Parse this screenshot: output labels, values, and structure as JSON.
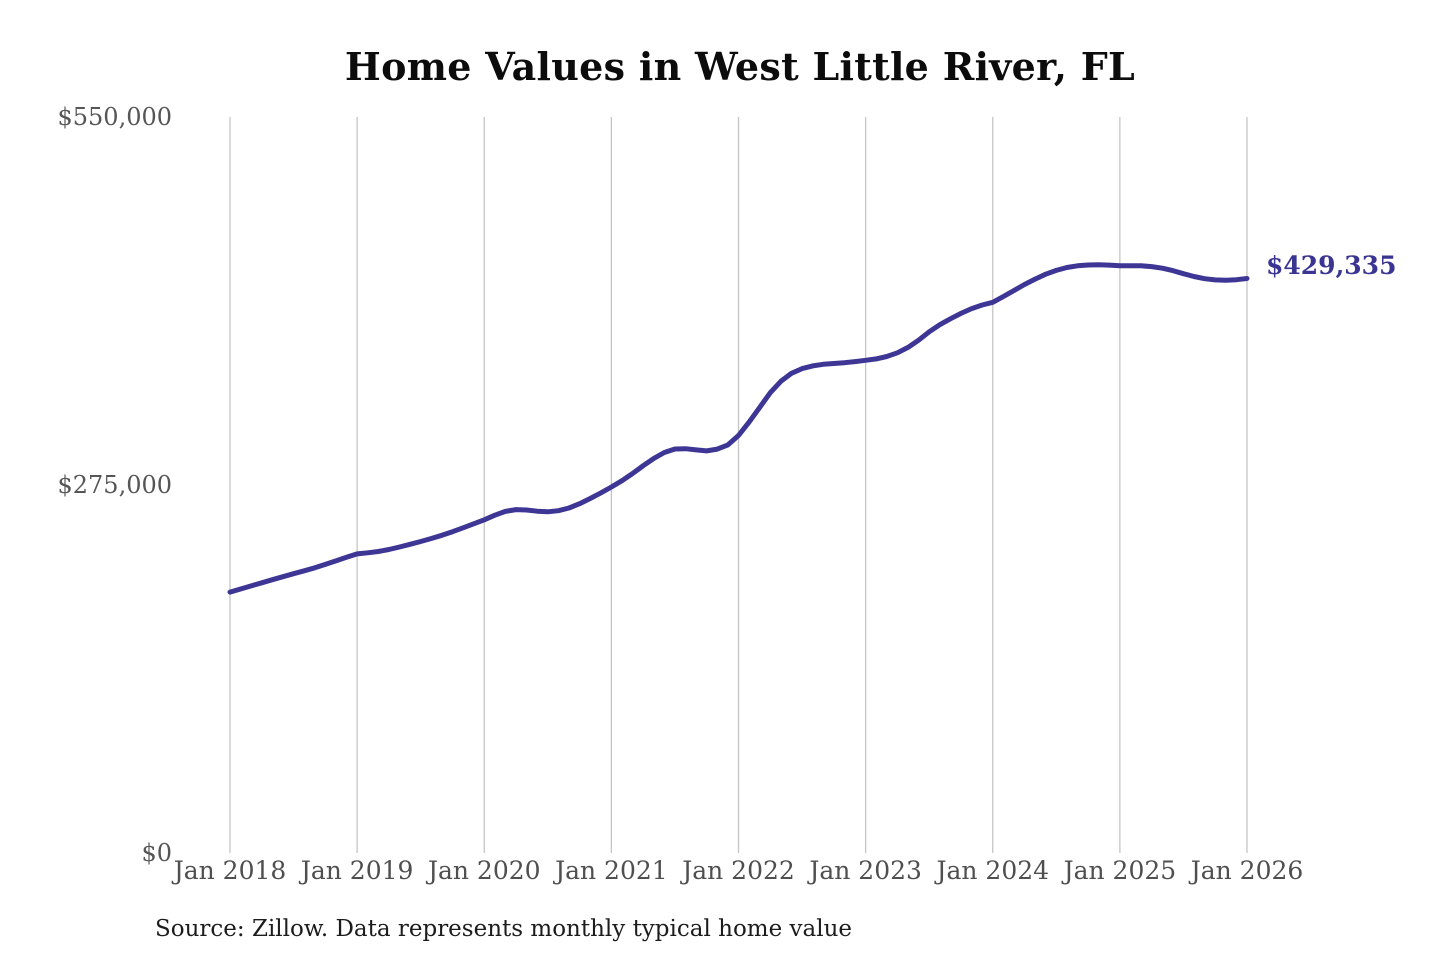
{
  "chart_data": {
    "type": "line",
    "title": "Home Values in West Little River, FL",
    "series_name": "Monthly typical home value",
    "x_start": "2018-01",
    "x_end": "2026-01",
    "x_interval": "month",
    "x_tick_labels": [
      "Jan 2018",
      "Jan 2019",
      "Jan 2020",
      "Jan 2021",
      "Jan 2022",
      "Jan 2023",
      "Jan 2024",
      "Jan 2025",
      "Jan 2026"
    ],
    "y_ticks": [
      {
        "value": 550000,
        "label": "$550,000"
      },
      {
        "value": 275000,
        "label": "$275,000"
      },
      {
        "value": 0,
        "label": "$0"
      }
    ],
    "ylim": [
      0,
      550000
    ],
    "grid": "vertical-only",
    "legend": "none",
    "line_color": "#3d3695",
    "grid_color": "#c5c5c5",
    "values": [
      195000,
      197300,
      199600,
      201900,
      204200,
      206500,
      208700,
      210900,
      213100,
      215700,
      218300,
      221000,
      223500,
      224300,
      225300,
      226800,
      228700,
      230700,
      232800,
      235000,
      237400,
      240100,
      243000,
      246000,
      249000,
      252400,
      255300,
      256600,
      256300,
      255400,
      255000,
      255800,
      257800,
      261000,
      264900,
      269100,
      273500,
      278200,
      283600,
      289400,
      294900,
      299300,
      301900,
      302100,
      301200,
      300500,
      301800,
      305000,
      312000,
      322000,
      333000,
      344000,
      352500,
      358500,
      362000,
      364000,
      365200,
      365800,
      366400,
      367200,
      368200,
      369200,
      371000,
      373800,
      377800,
      383200,
      389500,
      394800,
      399200,
      403200,
      406800,
      409500,
      411500,
      415800,
      420300,
      424800,
      428900,
      432500,
      435400,
      437500,
      438800,
      439400,
      439600,
      439300,
      438900,
      438900,
      438800,
      438200,
      437000,
      435200,
      432900,
      430800,
      429200,
      428300,
      428000,
      428400,
      429335
    ],
    "annotation": {
      "label": "$429,335",
      "value": 429335
    }
  },
  "source_note": "Source: Zillow. Data represents monthly typical home value"
}
